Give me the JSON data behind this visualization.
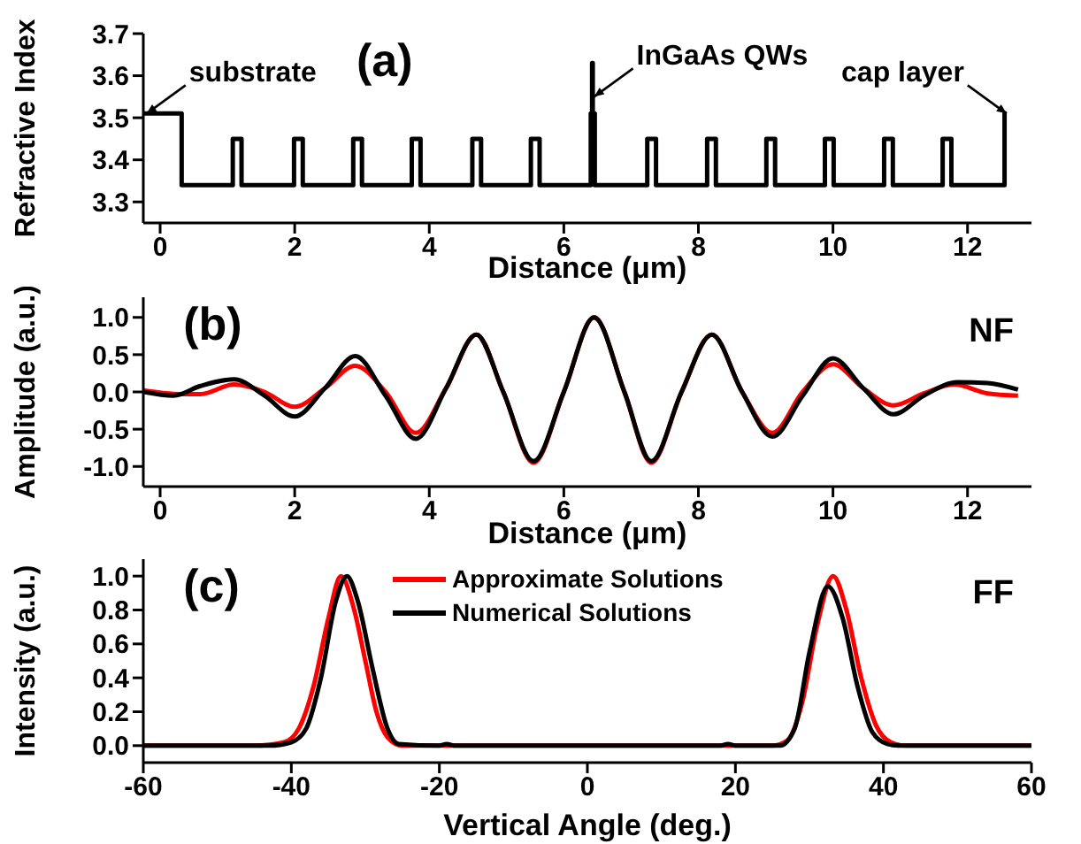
{
  "chart_data": [
    {
      "type": "step",
      "ylabel": "Refractive Index",
      "xlabel": "Distance (μm)",
      "xlim": [
        -0.25,
        12.95
      ],
      "xticks": [
        0,
        2,
        4,
        6,
        8,
        10,
        12
      ],
      "ylim": [
        3.25,
        3.7
      ],
      "yticks": [
        3.3,
        3.4,
        3.5,
        3.6,
        3.7
      ],
      "grid": false,
      "legend": false,
      "marker": "none",
      "annotations": [
        "(a)",
        {
          "text": "substrate",
          "x": -0.2,
          "y": 3.51
        },
        {
          "text": "InGaAs QWs",
          "x": 6.45,
          "y": 3.55
        },
        {
          "text": "cap layer",
          "x": 12.58,
          "y": 3.51
        }
      ],
      "series": [
        {
          "color": "#000000",
          "x": [
            -0.25,
            0.32,
            1.08,
            1.21,
            1.99,
            2.12,
            2.87,
            3.0,
            3.74,
            3.87,
            4.64,
            4.77,
            5.51,
            5.64,
            6.4,
            6.42,
            6.43,
            6.46,
            7.24,
            7.37,
            8.13,
            8.26,
            9.01,
            9.14,
            9.88,
            10.01,
            10.76,
            10.89,
            11.63,
            11.76,
            12.55,
            12.58
          ],
          "values": [
            3.51,
            3.34,
            3.45,
            3.34,
            3.45,
            3.34,
            3.45,
            3.34,
            3.45,
            3.34,
            3.45,
            3.34,
            3.45,
            3.34,
            3.51,
            3.63,
            3.51,
            3.34,
            3.45,
            3.34,
            3.45,
            3.34,
            3.45,
            3.34,
            3.45,
            3.34,
            3.45,
            3.34,
            3.45,
            3.34,
            3.51,
            3.51
          ]
        }
      ]
    },
    {
      "type": "line",
      "ylabel": "Amplitude (a.u.)",
      "xlabel": "Distance (μm)",
      "xlim": [
        -0.25,
        12.95
      ],
      "xticks": [
        0,
        2,
        4,
        6,
        8,
        10,
        12
      ],
      "ylim": [
        -1.27,
        1.27
      ],
      "yticks": [
        {
          "value": -1,
          "label": "-1.0"
        },
        -0.5,
        {
          "value": 0,
          "label": "0.0"
        },
        0.5,
        {
          "value": 1,
          "label": "1.0"
        }
      ],
      "grid": false,
      "legend": false,
      "marker": "none",
      "line_style": "solid",
      "annotations": [
        "(b)",
        "NF"
      ],
      "series": [
        {
          "color": "#ff0000",
          "x": [
            -0.25,
            0.3,
            0.6,
            1.1,
            1.55,
            2.0,
            2.45,
            2.9,
            3.35,
            3.8,
            4.25,
            4.7,
            5.1,
            5.55,
            6.0,
            6.45,
            6.9,
            7.3,
            7.75,
            8.2,
            8.65,
            9.1,
            9.55,
            10.0,
            10.45,
            10.9,
            11.35,
            11.8,
            12.3,
            12.75
          ],
          "values": [
            0.02,
            -0.03,
            -0.03,
            0.1,
            0.0,
            -0.2,
            0.05,
            0.35,
            0.0,
            -0.55,
            0.05,
            0.77,
            0.0,
            -0.95,
            0.0,
            1.0,
            0.0,
            -0.95,
            0.0,
            0.77,
            0.0,
            -0.55,
            0.0,
            0.37,
            0.05,
            -0.18,
            -0.02,
            0.1,
            -0.02,
            -0.05
          ]
        },
        {
          "color": "#000000",
          "x": [
            -0.25,
            0.2,
            0.6,
            1.1,
            1.55,
            2.0,
            2.45,
            2.9,
            3.35,
            3.8,
            4.25,
            4.7,
            5.1,
            5.55,
            6.0,
            6.45,
            6.9,
            7.3,
            7.75,
            8.2,
            8.65,
            9.1,
            9.55,
            10.0,
            10.45,
            10.9,
            11.35,
            11.85,
            12.3,
            12.75
          ],
          "values": [
            0.0,
            -0.05,
            0.08,
            0.17,
            -0.05,
            -0.33,
            0.05,
            0.48,
            -0.05,
            -0.63,
            0.05,
            0.77,
            0.0,
            -0.93,
            0.0,
            1.0,
            0.0,
            -0.93,
            0.0,
            0.77,
            0.0,
            -0.6,
            -0.05,
            0.45,
            0.05,
            -0.3,
            -0.05,
            0.13,
            0.12,
            0.03
          ]
        }
      ]
    },
    {
      "type": "line",
      "ylabel": "Intensity (a.u.)",
      "xlabel": "Vertical Angle (deg.)",
      "xlim": [
        -60,
        60
      ],
      "xticks": [
        -60,
        -40,
        -20,
        0,
        20,
        40,
        60
      ],
      "ylim": [
        -0.1,
        1.1
      ],
      "yticks": [
        {
          "value": 0,
          "label": "0.0"
        },
        0.2,
        0.4,
        0.6,
        0.8,
        {
          "value": 1,
          "label": "1.0"
        }
      ],
      "grid": false,
      "legend": "top",
      "marker": "none",
      "line_style": "solid",
      "annotations": [
        "(c)",
        "FF"
      ],
      "series": [
        {
          "name": "Approximate Solutions",
          "color": "#ff0000",
          "x": [
            -60,
            -45,
            -41,
            -39,
            -37,
            -35,
            -33.3,
            -31.5,
            -30,
            -28.5,
            -27,
            -25,
            25,
            27,
            29,
            31,
            33.2,
            35,
            37,
            39,
            41,
            43,
            60
          ],
          "values": [
            0,
            0,
            0.02,
            0.1,
            0.35,
            0.75,
            1.0,
            0.8,
            0.5,
            0.2,
            0.05,
            0,
            0,
            0.03,
            0.25,
            0.7,
            1.0,
            0.8,
            0.4,
            0.12,
            0.02,
            0,
            0
          ]
        },
        {
          "name": "Numerical Solutions",
          "color": "#000000",
          "x": [
            -60,
            -43,
            -40,
            -38,
            -36,
            -34,
            -32.5,
            -31,
            -29,
            -27,
            -25.5,
            -20,
            -19,
            -18,
            18,
            19,
            20,
            26,
            28,
            30,
            32.5,
            34.5,
            36.5,
            38.5,
            40.5,
            42,
            60
          ],
          "values": [
            0,
            0,
            0.02,
            0.1,
            0.4,
            0.85,
            1.0,
            0.85,
            0.45,
            0.1,
            0.01,
            0,
            0.01,
            0,
            0,
            0.01,
            0,
            0,
            0.1,
            0.55,
            0.94,
            0.75,
            0.35,
            0.08,
            0.01,
            0,
            0
          ]
        }
      ]
    }
  ]
}
